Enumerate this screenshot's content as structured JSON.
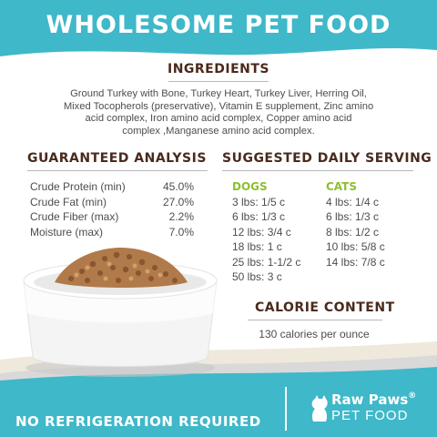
{
  "header": {
    "title": "WHOLESOME PET FOOD"
  },
  "ingredients": {
    "title": "INGREDIENTS",
    "lines": [
      "Ground Turkey with Bone, Turkey Heart, Turkey Liver, Herring Oil,",
      "Mixed Tocopherols (preservative), Vitamin E supplement, Zinc amino",
      "acid complex, Iron amino acid complex, Copper amino acid",
      "complex ,Manganese amino acid complex."
    ]
  },
  "analysis": {
    "title": "GUARANTEED ANALYSIS",
    "rows": [
      {
        "label": "Crude Protein (min)",
        "value": "45.0%"
      },
      {
        "label": "Crude Fat (min)",
        "value": "27.0%"
      },
      {
        "label": "Crude Fiber (max)",
        "value": "2.2%"
      },
      {
        "label": "Moisture (max)",
        "value": "7.0%"
      }
    ]
  },
  "serving": {
    "title": "SUGGESTED DAILY SERVING",
    "dogs": {
      "heading": "DOGS",
      "items": [
        "3 lbs: 1/5 c",
        "6 lbs: 1/3 c",
        "12 lbs: 3/4 c",
        "18 lbs: 1 c",
        "25 lbs: 1-1/2 c",
        "50 lbs: 3 c"
      ]
    },
    "cats": {
      "heading": "CATS",
      "items": [
        "4 lbs: 1/4 c",
        "6 lbs: 1/3 c",
        "8 lbs: 1/2 c",
        "10 lbs: 5/8 c",
        "14 lbs: 7/8 c"
      ]
    }
  },
  "calorie": {
    "title": "CALORIE CONTENT",
    "text": "130 calories per ounce"
  },
  "footer": {
    "note": "NO REFRIGERATION REQUIRED",
    "brand_name": "Raw Paws",
    "brand_reg": "®",
    "brand_sub": "PET FOOD"
  },
  "colors": {
    "teal": "#3fb8c9",
    "brown": "#4a2a1c",
    "green": "#8dbf2e",
    "cream": "#efe9dc"
  }
}
